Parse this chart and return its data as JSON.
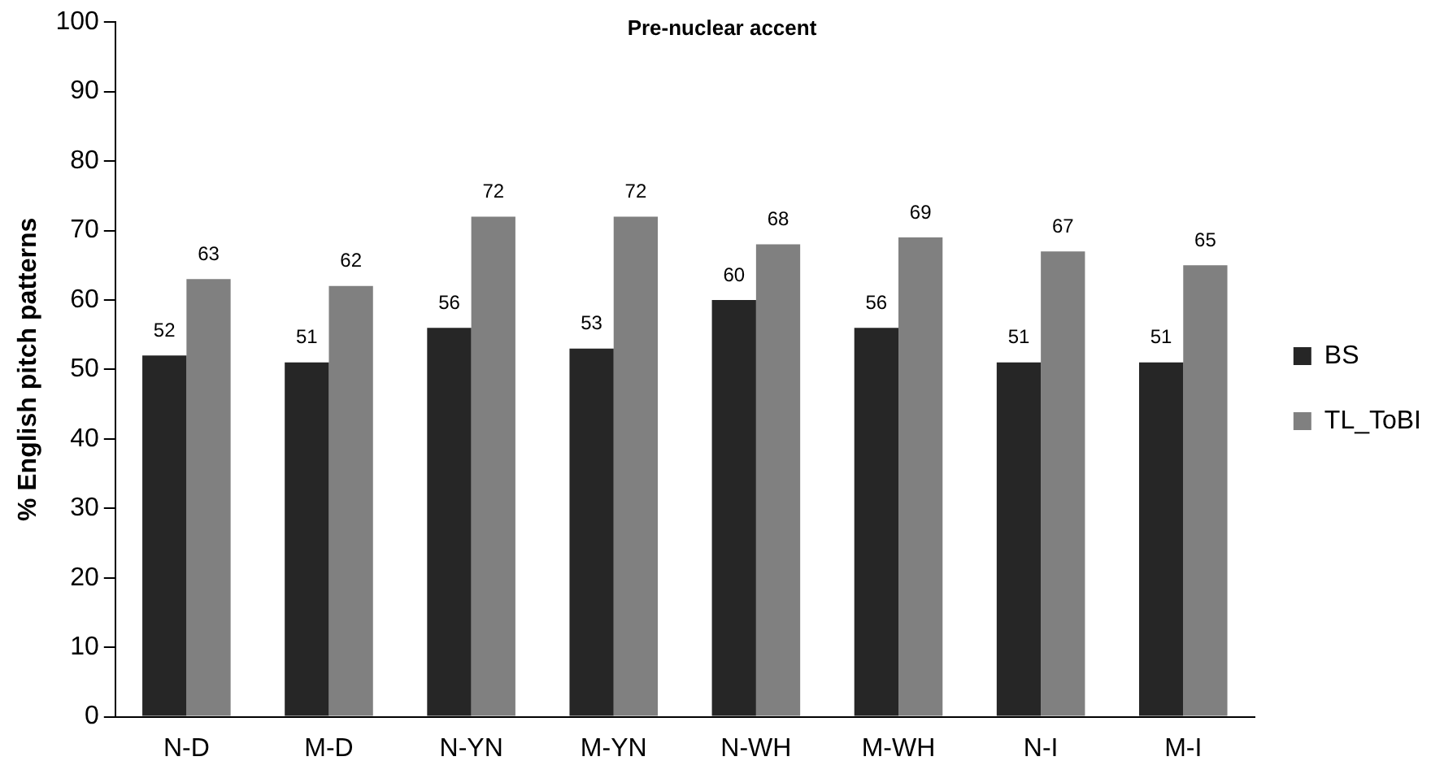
{
  "chart_data": {
    "type": "bar",
    "title": "Pre-nuclear accent",
    "ylabel": "% English pitch patterns",
    "categories": [
      "N-D",
      "M-D",
      "N-YN",
      "M-YN",
      "N-WH",
      "M-WH",
      "N-I",
      "M-I"
    ],
    "series": [
      {
        "name": "BS",
        "color": "#262626",
        "values": [
          52,
          51,
          56,
          53,
          60,
          56,
          51,
          51
        ]
      },
      {
        "name": "TL_ToBI",
        "color": "#808080",
        "values": [
          63,
          62,
          72,
          72,
          68,
          69,
          67,
          65
        ]
      }
    ],
    "ylim": [
      0,
      100
    ],
    "yticks": [
      0,
      10,
      20,
      30,
      40,
      50,
      60,
      70,
      80,
      90,
      100
    ],
    "grid": false,
    "legend": "right",
    "data_labels": true
  }
}
